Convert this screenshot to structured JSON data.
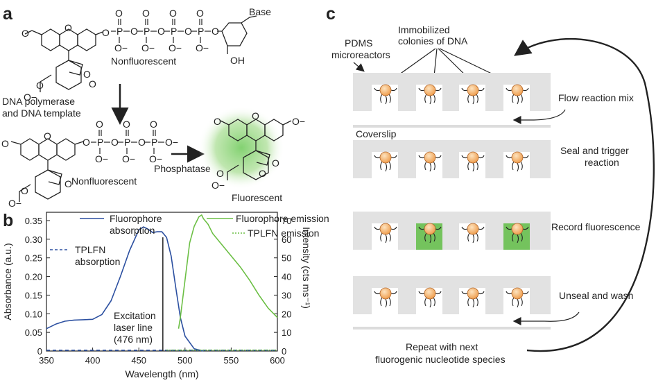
{
  "panel_a": {
    "letter": "a",
    "base": "Base",
    "oh": "OH",
    "nonfluorescent_top": "Nonfluorescent",
    "enzyme_line1": "DNA polymerase",
    "enzyme_line2": "and DNA template",
    "nonfluorescent_mid": "Nonfluorescent",
    "phosphatase": "Phosphatase",
    "fluorescent": "Fluorescent",
    "atoms": {
      "P": "P",
      "O": "O",
      "Ominus": "O−"
    },
    "glow_color": "#7ccf6a"
  },
  "panel_b": {
    "letter": "b",
    "legend": {
      "fluor_abs_1": "Fluorophore",
      "fluor_abs_2": "absorption",
      "tplfn_abs_1": "TPLFN",
      "tplfn_abs_2": "absorption",
      "fluor_em": "Fluorophore emission",
      "tplfn_em": "TPLFN emission"
    },
    "annotation": [
      "Excitation",
      "laser line",
      "(476 nm)"
    ]
  },
  "chart_data": {
    "type": "line",
    "xlabel": "Wavelength (nm)",
    "ylabel": "Absorbance (a.u.)",
    "y2label": "Intensity (cts ms⁻¹)",
    "xlim": [
      350,
      600
    ],
    "ylim": [
      0,
      0.35
    ],
    "y2lim": [
      0,
      70
    ],
    "xticks": [
      "350",
      "400",
      "450",
      "500",
      "550",
      "600"
    ],
    "yticks": [
      "0",
      "0.05",
      "0.10",
      "0.15",
      "0.20",
      "0.25",
      "0.30",
      "0.35"
    ],
    "y2ticks": [
      "0",
      "10",
      "20",
      "30",
      "40",
      "50",
      "60",
      "70"
    ],
    "excitation_line": 476,
    "colors": {
      "absorption": "#2b4fa0",
      "emission": "#6cbf45"
    },
    "series": [
      {
        "name": "Fluorophore absorption",
        "axis": "left",
        "style": "solid",
        "x": [
          350,
          360,
          370,
          380,
          390,
          400,
          410,
          420,
          430,
          440,
          450,
          455,
          460,
          465,
          470,
          475,
          480,
          485,
          490,
          495,
          500,
          510,
          520
        ],
        "y": [
          0.06,
          0.072,
          0.08,
          0.083,
          0.084,
          0.085,
          0.098,
          0.135,
          0.2,
          0.27,
          0.325,
          0.333,
          0.327,
          0.318,
          0.32,
          0.32,
          0.305,
          0.255,
          0.17,
          0.09,
          0.04,
          0.006,
          0.0
        ]
      },
      {
        "name": "TPLFN absorption",
        "axis": "left",
        "style": "dashed",
        "x": [
          350,
          600
        ],
        "y": [
          0.002,
          0.002
        ]
      },
      {
        "name": "Fluorophore emission",
        "axis": "right",
        "style": "solid",
        "x": [
          493,
          495,
          500,
          505,
          510,
          515,
          518,
          520,
          525,
          530,
          540,
          550,
          560,
          570,
          580,
          590,
          600
        ],
        "y": [
          12,
          18,
          38,
          58,
          67,
          72,
          73,
          71,
          68,
          63,
          57,
          51,
          45,
          38,
          30,
          23,
          18
        ]
      },
      {
        "name": "TPLFN emission",
        "axis": "right",
        "style": "dotted",
        "x": [
          480,
          600
        ],
        "y": [
          0.5,
          0.5
        ]
      }
    ]
  },
  "panel_c": {
    "letter": "c",
    "immobilized_1": "Immobilized",
    "immobilized_2": "colonies of DNA",
    "pdms_1": "PDMS",
    "pdms_2": "microreactors",
    "step_flow": "Flow reaction mix",
    "coverslip": "Coverslip",
    "step_seal_1": "Seal and trigger",
    "step_seal_2": "reaction",
    "step_record": "Record fluorescence",
    "step_unseal": "Unseal and wash",
    "repeat_1": "Repeat with next",
    "repeat_2": "fluorogenic nucleotide species",
    "rows": [
      {
        "lit": [
          false,
          false,
          false,
          false
        ]
      },
      {
        "lit": [
          false,
          false,
          false,
          false
        ]
      },
      {
        "lit": [
          false,
          true,
          false,
          true
        ]
      },
      {
        "lit": [
          false,
          false,
          false,
          false
        ]
      }
    ],
    "colors": {
      "pdms": "#e2e2e2",
      "well_lit": "#74c35d",
      "bead": "#f4b06a"
    }
  }
}
